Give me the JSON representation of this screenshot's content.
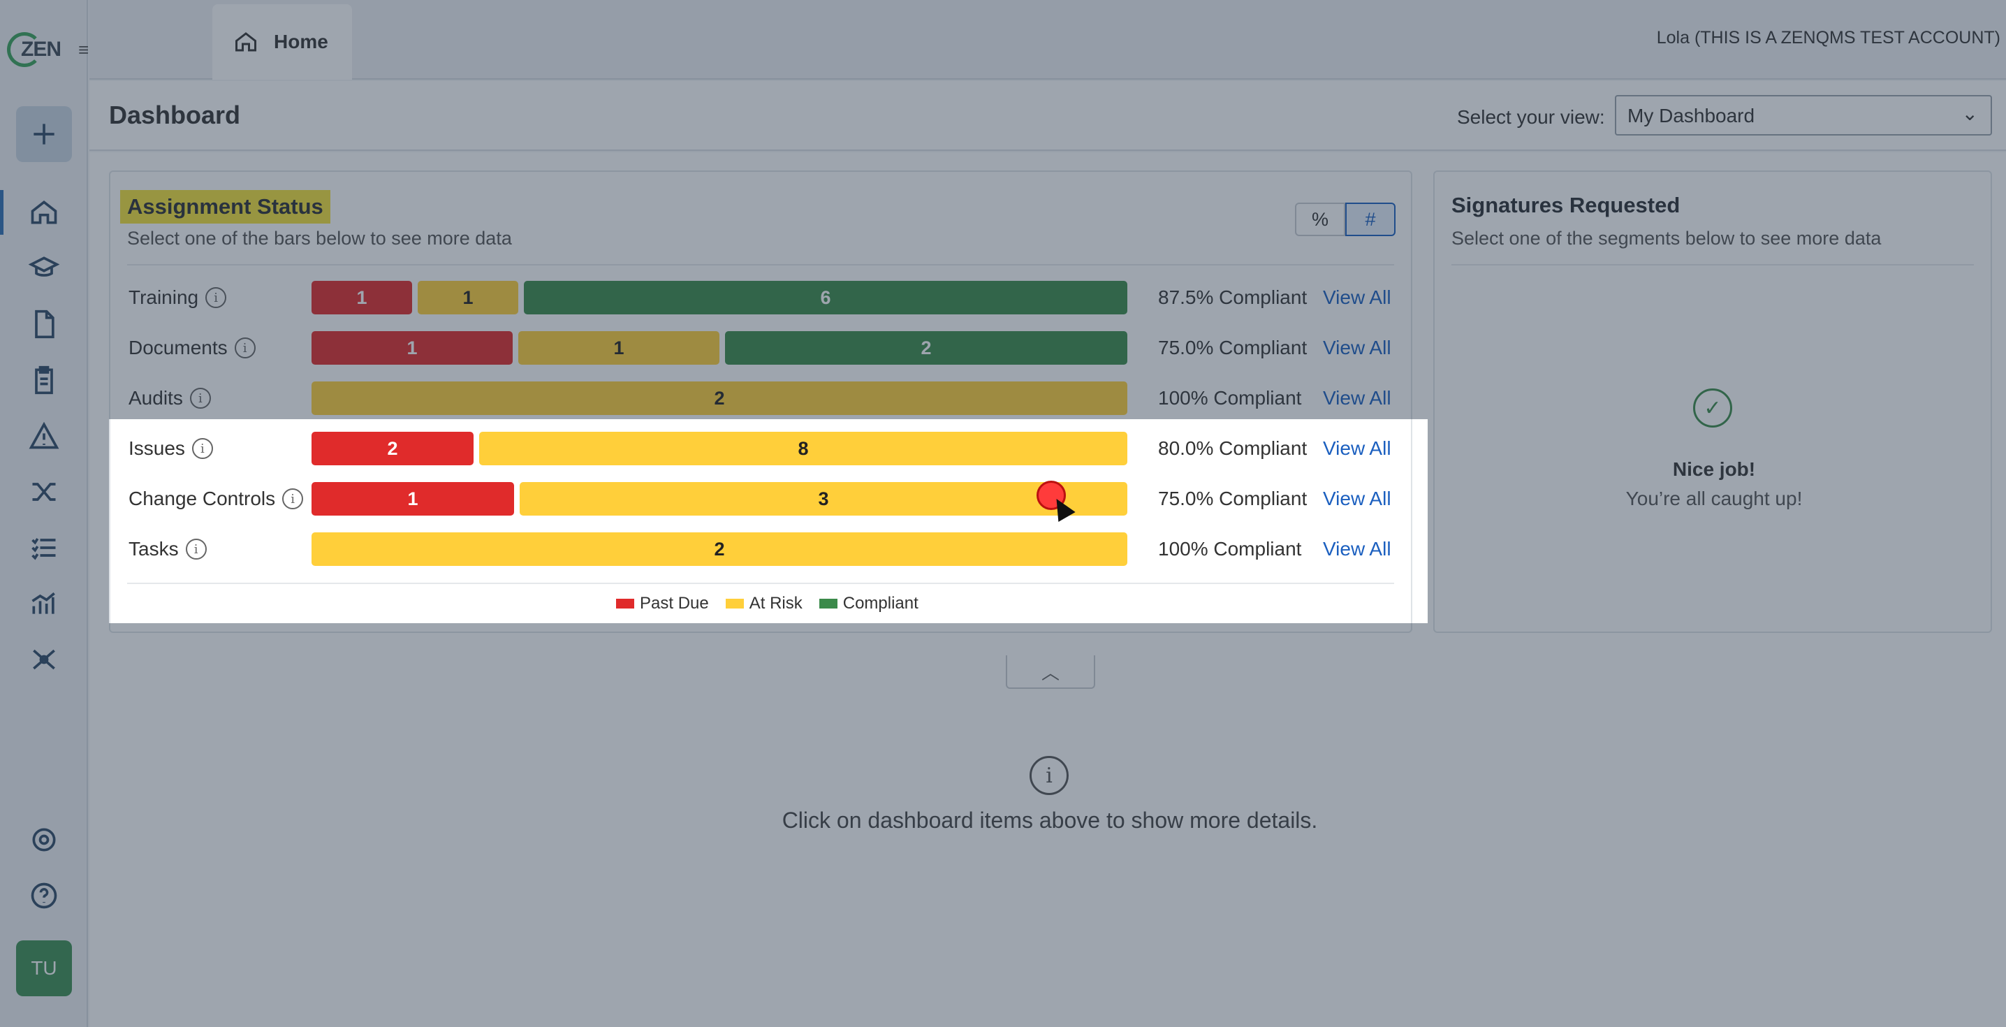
{
  "app": {
    "logo_text": "ZEN",
    "account_label": "Lola (THIS IS A ZENQMS TEST ACCOUNT)",
    "avatar_initials": "TU",
    "sidebar_icons": [
      "add-icon",
      "home-icon",
      "training-icon",
      "document-icon",
      "audit-icon",
      "issue-icon",
      "change-control-icon",
      "tasks-icon",
      "reports-icon",
      "network-icon",
      "settings-icon",
      "help-icon"
    ]
  },
  "tabs": [
    {
      "label": "Home"
    }
  ],
  "header": {
    "title": "Dashboard",
    "view_label": "Select your view:",
    "view_value": "My Dashboard"
  },
  "assignment_status": {
    "title": "Assignment Status",
    "subtitle": "Select one of the bars below to see more data",
    "toggle_pct": "%",
    "toggle_num": "#",
    "view_all": "View All",
    "rows": [
      {
        "label": "Training",
        "past_due": 1,
        "at_risk": 1,
        "compliant": 6,
        "compliance": "87.5% Compliant"
      },
      {
        "label": "Documents",
        "past_due": 1,
        "at_risk": 1,
        "compliant": 2,
        "compliance": "75.0% Compliant"
      },
      {
        "label": "Audits",
        "past_due": 0,
        "at_risk": 2,
        "compliant": 0,
        "compliance": "100% Compliant"
      },
      {
        "label": "Issues",
        "past_due": 2,
        "at_risk": 8,
        "compliant": 0,
        "compliance": "80.0% Compliant"
      },
      {
        "label": "Change Controls",
        "past_due": 1,
        "at_risk": 3,
        "compliant": 0,
        "compliance": "75.0% Compliant"
      },
      {
        "label": "Tasks",
        "past_due": 0,
        "at_risk": 2,
        "compliant": 0,
        "compliance": "100% Compliant"
      }
    ],
    "legend": {
      "past_due": "Past Due",
      "at_risk": "At Risk",
      "compliant": "Compliant"
    },
    "colors": {
      "past_due": "#e02b2b",
      "at_risk": "#ffcf3a",
      "compliant": "#3b8a4a"
    }
  },
  "signatures": {
    "title": "Signatures Requested",
    "subtitle": "Select one of the segments below to see more data",
    "nice": "Nice job!",
    "caught_up": "You’re all caught up!"
  },
  "details": {
    "text": "Click on dashboard items above to show more details."
  }
}
